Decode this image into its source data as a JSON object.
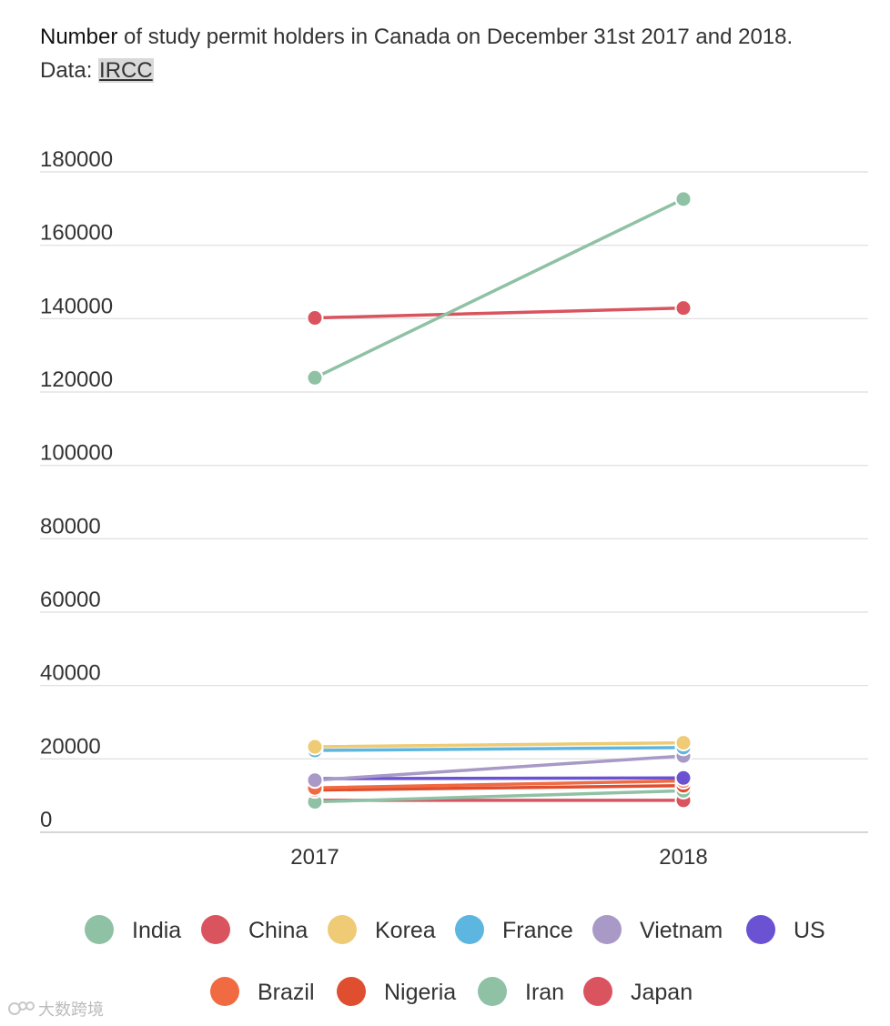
{
  "header": {
    "title_strong": "Number",
    "title_rest": " of study permit holders in Canada on December 31st 2017 and 2018.",
    "source_prefix": "Data: ",
    "source_link": "IRCC"
  },
  "watermark": {
    "text": "大数跨境"
  },
  "chart_data": {
    "type": "line",
    "x": [
      "2017",
      "2018"
    ],
    "ylim": [
      0,
      180000
    ],
    "yticks": [
      0,
      20000,
      40000,
      60000,
      80000,
      100000,
      120000,
      140000,
      160000,
      180000
    ],
    "grid": true,
    "legend_position": "bottom",
    "series": [
      {
        "name": "India",
        "color": "#8fc1a5",
        "values": [
          123900,
          172600
        ]
      },
      {
        "name": "China",
        "color": "#d9545e",
        "values": [
          140200,
          142900
        ]
      },
      {
        "name": "Korea",
        "color": "#eecb74",
        "values": [
          23300,
          24400
        ]
      },
      {
        "name": "France",
        "color": "#5db6df",
        "values": [
          22300,
          23100
        ]
      },
      {
        "name": "Vietnam",
        "color": "#a899c6",
        "values": [
          14200,
          20800
        ]
      },
      {
        "name": "US",
        "color": "#6b52d3",
        "values": [
          14600,
          14800
        ]
      },
      {
        "name": "Brazil",
        "color": "#f06a42",
        "values": [
          12100,
          14000
        ]
      },
      {
        "name": "Nigeria",
        "color": "#e04e30",
        "values": [
          11500,
          12700
        ]
      },
      {
        "name": "Iran",
        "color": "#8fc1a5",
        "values": [
          8300,
          11300
        ]
      },
      {
        "name": "Japan",
        "color": "#d9545e",
        "values": [
          8700,
          8700
        ]
      }
    ]
  }
}
